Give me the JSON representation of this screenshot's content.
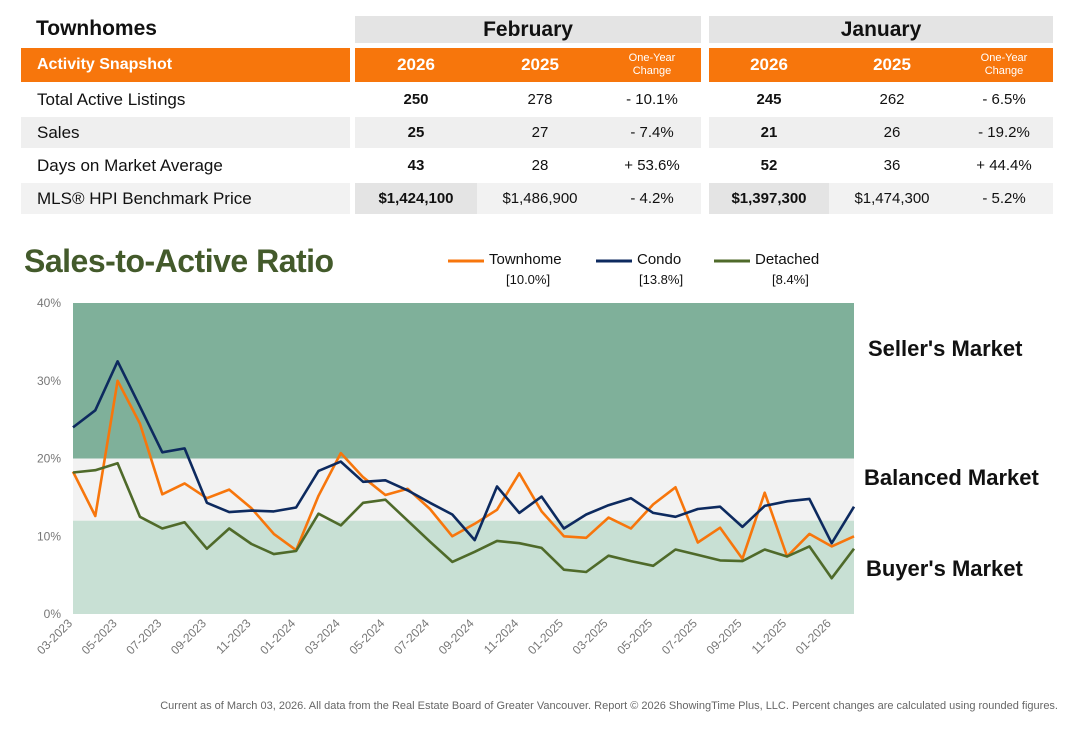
{
  "table": {
    "title": "Townhomes",
    "snapshot_label": "Activity Snapshot",
    "groups": [
      {
        "name": "February",
        "year_current": "2026",
        "year_prior": "2025",
        "change_label": "One-Year Change"
      },
      {
        "name": "January",
        "year_current": "2026",
        "year_prior": "2025",
        "change_label": "One-Year Change"
      }
    ],
    "rows": [
      {
        "label": "Total Active Listings",
        "feb_cur": "250",
        "feb_prev": "278",
        "feb_chg": "- 10.1%",
        "jan_cur": "245",
        "jan_prev": "262",
        "jan_chg": "- 6.5%"
      },
      {
        "label": "Sales",
        "feb_cur": "25",
        "feb_prev": "27",
        "feb_chg": "- 7.4%",
        "jan_cur": "21",
        "jan_prev": "26",
        "jan_chg": "- 19.2%"
      },
      {
        "label": "Days on Market Average",
        "feb_cur": "43",
        "feb_prev": "28",
        "feb_chg": "+ 53.6%",
        "jan_cur": "52",
        "jan_prev": "36",
        "jan_chg": "+ 44.4%"
      },
      {
        "label": "MLS® HPI Benchmark Price",
        "feb_cur": "$1,424,100",
        "feb_prev": "$1,486,900",
        "feb_chg": "- 4.2%",
        "jan_cur": "$1,397,300",
        "jan_prev": "$1,474,300",
        "jan_chg": "- 5.2%"
      }
    ]
  },
  "chart_data": {
    "type": "line",
    "title": "Sales-to-Active Ratio",
    "ylim": [
      0,
      40
    ],
    "y_ticks": [
      "0%",
      "10%",
      "20%",
      "30%",
      "40%"
    ],
    "x_tick_labels": [
      "03-2023",
      "05-2023",
      "07-2023",
      "09-2023",
      "11-2023",
      "01-2024",
      "03-2024",
      "05-2024",
      "07-2024",
      "09-2024",
      "11-2024",
      "01-2025",
      "03-2025",
      "05-2025",
      "07-2025",
      "09-2025",
      "11-2025",
      "01-2026"
    ],
    "x": [
      "03-2023",
      "04-2023",
      "05-2023",
      "06-2023",
      "07-2023",
      "08-2023",
      "09-2023",
      "10-2023",
      "11-2023",
      "12-2023",
      "01-2024",
      "02-2024",
      "03-2024",
      "04-2024",
      "05-2024",
      "06-2024",
      "07-2024",
      "08-2024",
      "09-2024",
      "10-2024",
      "11-2024",
      "12-2024",
      "01-2025",
      "02-2025",
      "03-2025",
      "04-2025",
      "05-2025",
      "06-2025",
      "07-2025",
      "08-2025",
      "09-2025",
      "10-2025",
      "11-2025",
      "12-2025",
      "01-2026",
      "02-2026"
    ],
    "bands": [
      {
        "label": "Seller's Market",
        "from": 20,
        "to": 40,
        "color": "#7fb09a"
      },
      {
        "label": "Balanced Market",
        "from": 12,
        "to": 20,
        "color": "#f2f2f2"
      },
      {
        "label": "Buyer's Market",
        "from": 0,
        "to": 12,
        "color": "#c8e0d4"
      }
    ],
    "series": [
      {
        "name": "Townhome",
        "current": "[10.0%]",
        "color": "#f7760c",
        "values": [
          18.3,
          12.6,
          30.0,
          24.5,
          15.4,
          16.8,
          14.9,
          16.0,
          13.6,
          10.3,
          8.2,
          15.2,
          20.7,
          17.6,
          15.3,
          16.1,
          13.5,
          10.0,
          11.6,
          13.4,
          18.1,
          13.2,
          10.0,
          9.8,
          12.4,
          11.0,
          14.1,
          16.3,
          9.2,
          11.1,
          7.1,
          15.6,
          7.4,
          10.3,
          8.7,
          10.0
        ]
      },
      {
        "name": "Condo",
        "current": "[13.8%]",
        "color": "#0d2a5f",
        "values": [
          24.0,
          26.2,
          32.5,
          26.7,
          20.8,
          21.3,
          14.3,
          13.1,
          13.3,
          13.2,
          13.7,
          18.4,
          19.6,
          17.0,
          17.2,
          15.9,
          14.3,
          12.8,
          9.5,
          16.4,
          13.0,
          15.1,
          11.0,
          12.8,
          14.0,
          14.9,
          13.0,
          12.5,
          13.5,
          13.8,
          11.2,
          13.9,
          14.5,
          14.8,
          9.1,
          13.8
        ]
      },
      {
        "name": "Detached",
        "current": "[8.4%]",
        "color": "#4f6a2a",
        "values": [
          18.2,
          18.5,
          19.4,
          12.5,
          11.0,
          11.8,
          8.4,
          11.0,
          9.0,
          7.7,
          8.1,
          12.9,
          11.4,
          14.3,
          14.7,
          12.0,
          9.3,
          6.7,
          8.0,
          9.4,
          9.1,
          8.5,
          5.7,
          5.4,
          7.5,
          6.8,
          6.2,
          8.3,
          7.6,
          6.9,
          6.8,
          8.3,
          7.4,
          8.7,
          4.6,
          8.4
        ]
      }
    ]
  },
  "market_labels": {
    "seller": "Seller's Market",
    "balanced": "Balanced Market",
    "buyer": "Buyer's Market"
  },
  "footer": "Current as of March 03, 2026. All data from the Real Estate Board of Greater Vancouver.  Report © 2026 ShowingTime Plus, LLC. Percent changes are calculated using rounded figures."
}
